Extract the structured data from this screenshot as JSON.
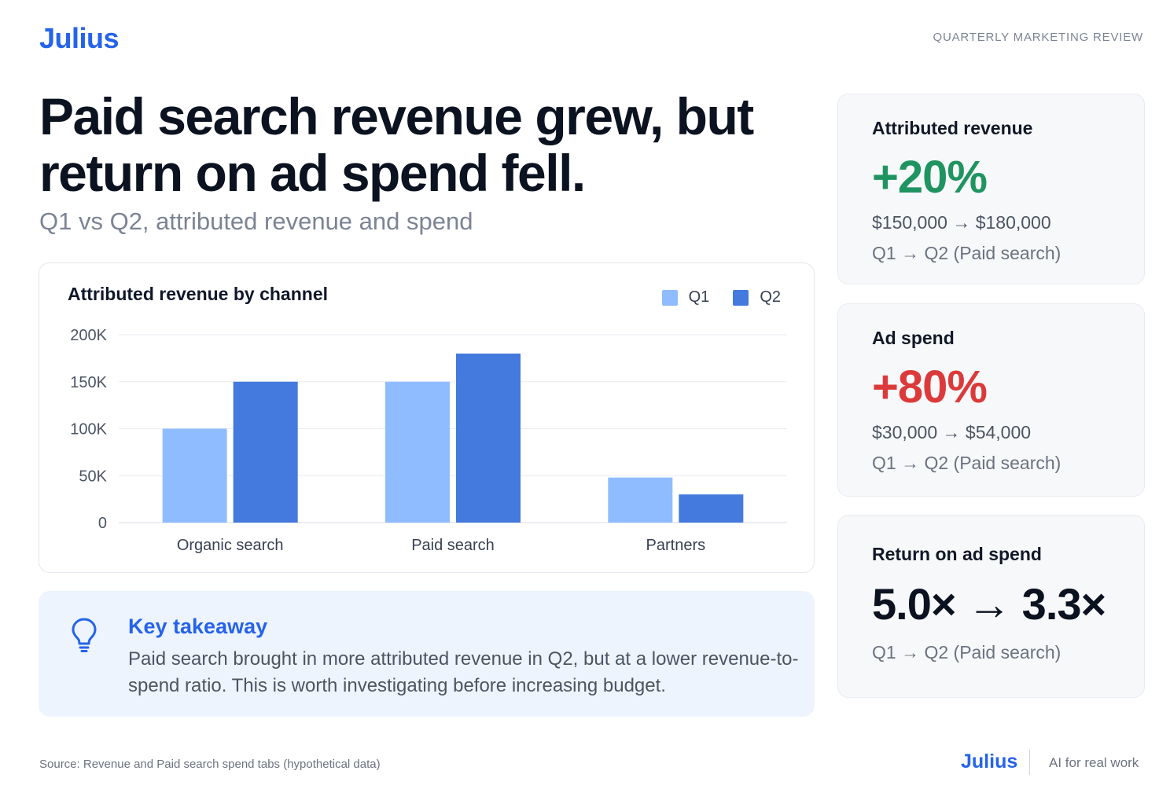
{
  "brand": {
    "logo": "Julius",
    "eyebrow": "QUARTERLY MARKETING REVIEW"
  },
  "headline": "Paid search revenue grew, but return on ad spend fell.",
  "subhead": "Q1 vs Q2, attributed revenue and spend",
  "colors": {
    "accent": "#2563eb",
    "q1": "#8fbcff",
    "q2": "#4479de",
    "positive": "#1f9460",
    "negative": "#dc3a3a"
  },
  "chart_data": {
    "type": "bar",
    "title": "Attributed revenue by channel",
    "categories": [
      "Organic search",
      "Paid search",
      "Partners"
    ],
    "series": [
      {
        "name": "Q1",
        "values": [
          100000,
          150000,
          48000
        ]
      },
      {
        "name": "Q2",
        "values": [
          150000,
          180000,
          30000
        ]
      }
    ],
    "ylim": [
      0,
      200000
    ],
    "yticks": [
      0,
      50000,
      100000,
      150000,
      200000
    ],
    "ytick_labels": [
      "0",
      "50K",
      "100K",
      "150K",
      "200K"
    ],
    "grid": true,
    "legend": "top-right"
  },
  "takeaway": {
    "icon": "lightbulb-icon",
    "title": "Key takeaway",
    "body": "Paid search brought in more attributed revenue in Q2, but at a lower revenue-to-spend ratio. This is worth investigating before increasing budget."
  },
  "kpis": [
    {
      "title": "Attributed revenue",
      "value": "+20%",
      "line": "$150,000 → $180,000",
      "sub": "Q1 → Q2 (Paid search)"
    },
    {
      "title": "Ad spend",
      "value": "+80%",
      "line": "$30,000 → $54,000",
      "sub": "Q1 → Q2 (Paid search)"
    },
    {
      "title": "Return on ad spend",
      "value": "5.0× → 3.3×",
      "sub": "Q1 → Q2 (Paid search)"
    }
  ],
  "footer": {
    "source": "Source: Revenue and Paid search spend tabs (hypothetical data)",
    "logo": "Julius",
    "tagline": "AI for real work"
  }
}
